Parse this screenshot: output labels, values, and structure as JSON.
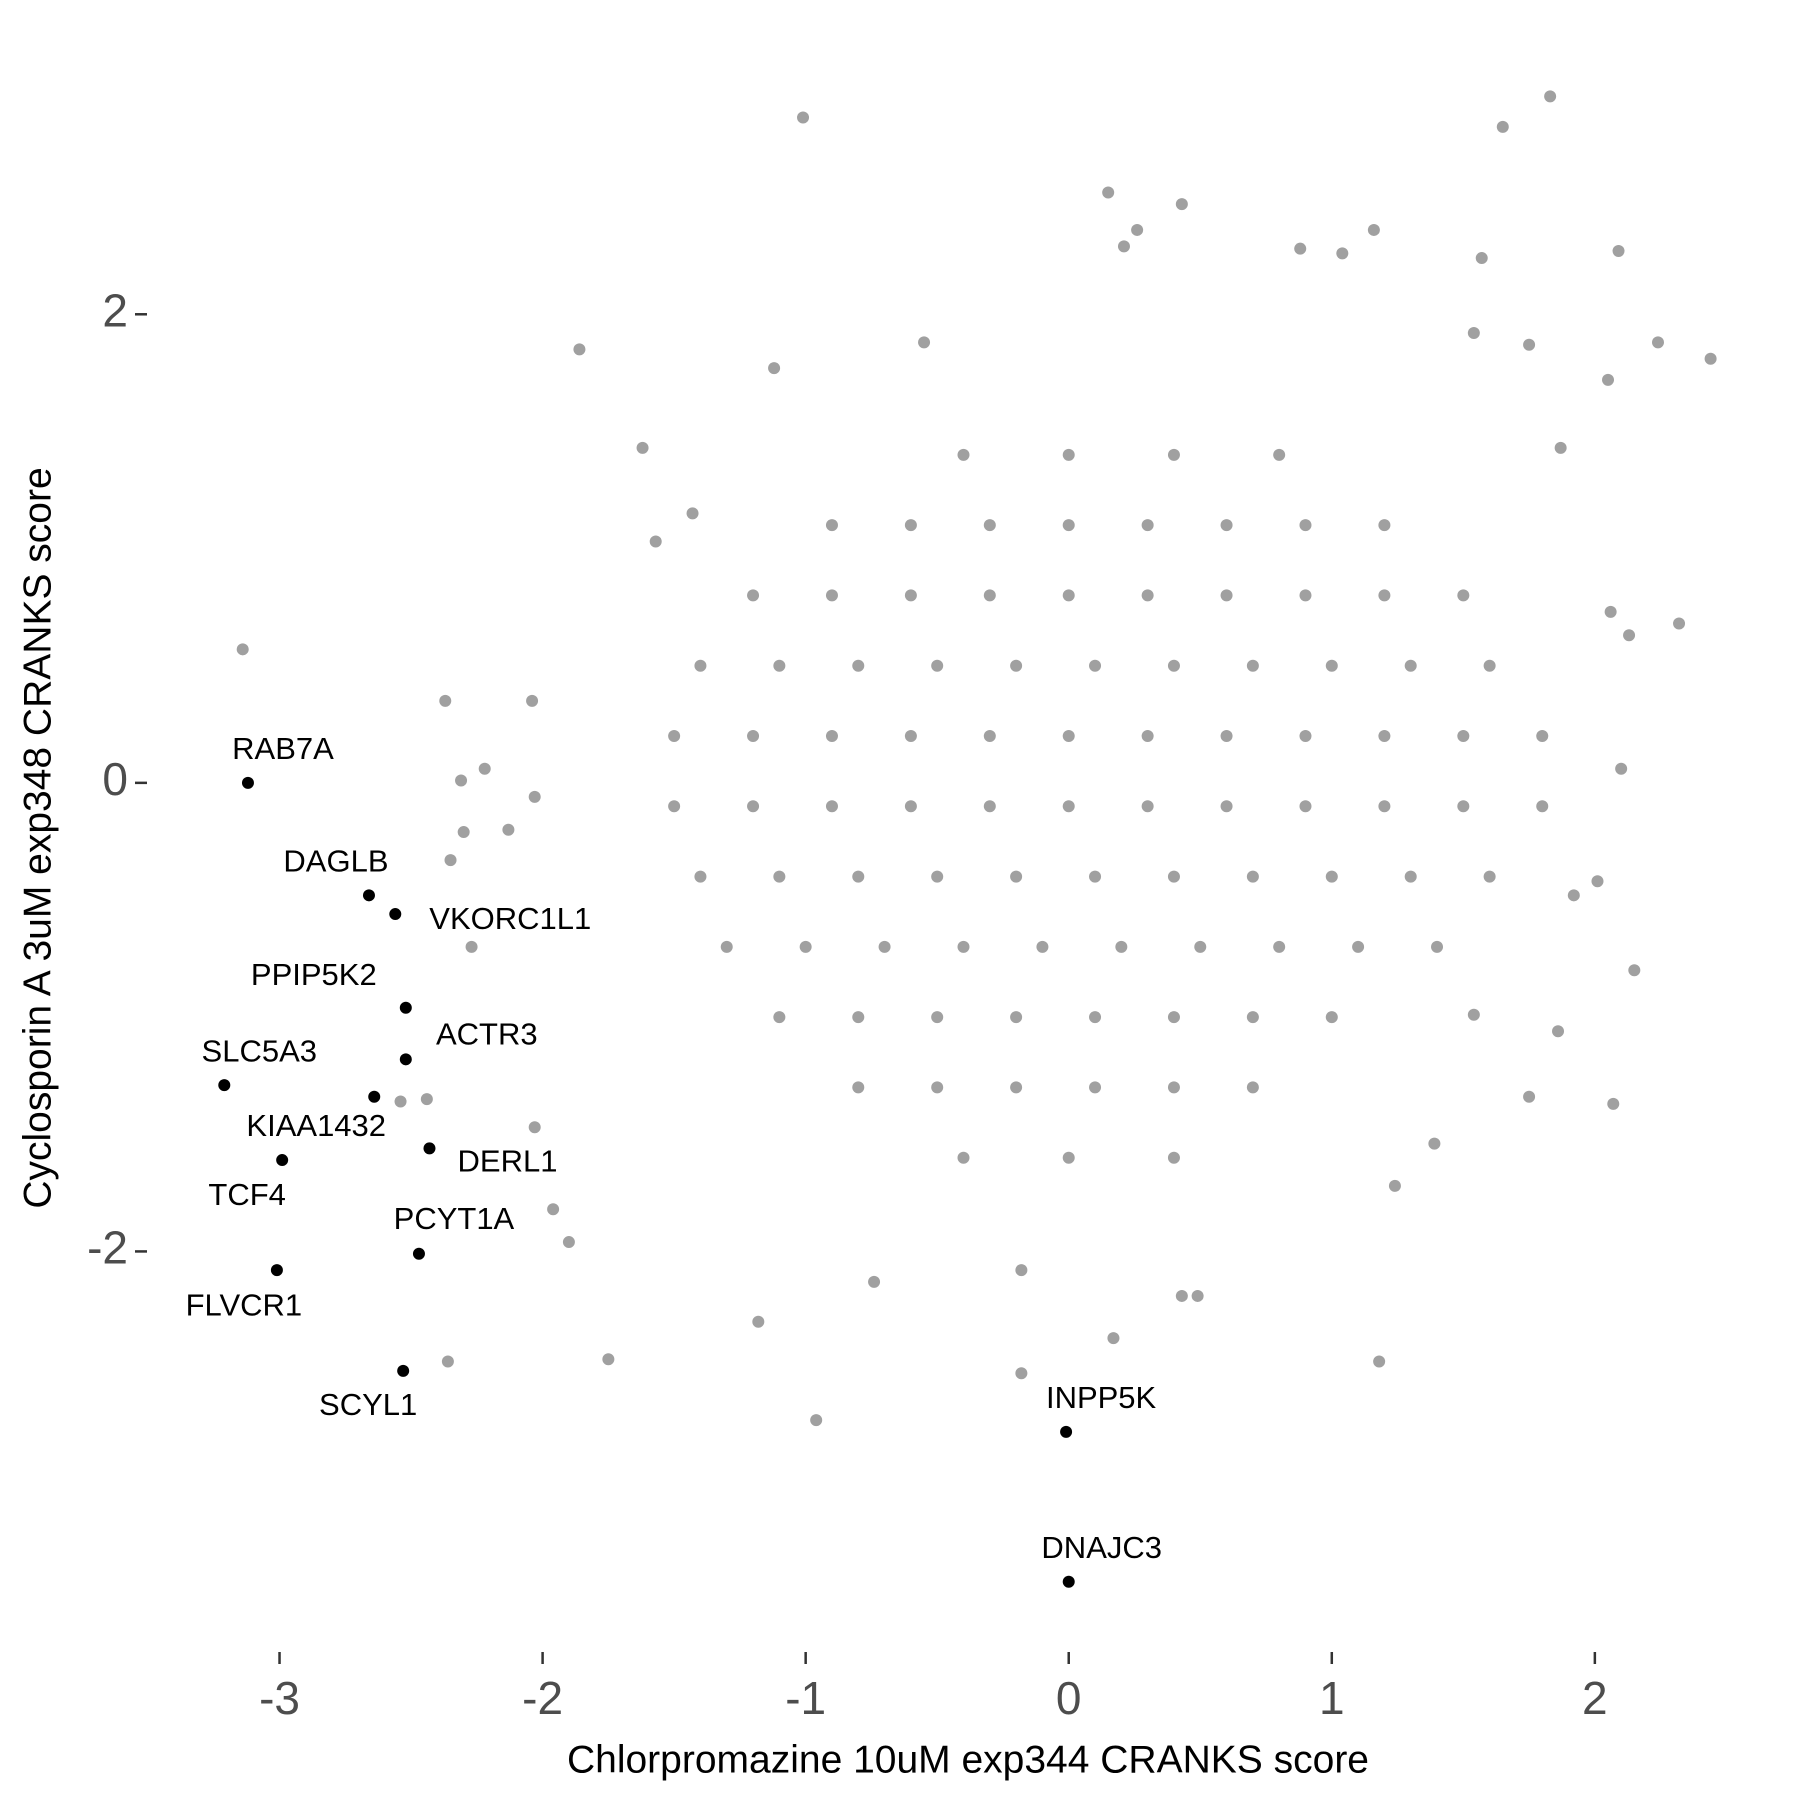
{
  "chart_data": {
    "type": "scatter",
    "x_label": "Chlorpromazine 10uM exp344 CRANKS score",
    "y_label": "Cyclosporin A 3uM exp348 CRANKS score",
    "xlim": [
      -3.5,
      2.7
    ],
    "ylim": [
      -3.65,
      3.0
    ],
    "xticks": [
      -3,
      -2,
      -1,
      0,
      1,
      2
    ],
    "yticks": [
      -2,
      0,
      2
    ],
    "grid": false,
    "series": [
      {
        "color": "#a0a0a0",
        "x": [
          -1.01,
          1.83,
          1.65,
          0.15,
          0.43,
          -3.14,
          -1.86,
          -1.12,
          2.24,
          2.44,
          2.09,
          2.32,
          2.15,
          2.07,
          1.24,
          1.18,
          0.43,
          0.17,
          -0.18,
          -0.96,
          -1.18,
          -1.75,
          -2.36,
          -2.37,
          -2.04,
          -2.31,
          -2.22,
          -2.03,
          -2.13,
          -2.35,
          -2.3,
          -2.27,
          -1.96,
          -1.9,
          -2.03,
          -2.44,
          -2.54,
          -0.74,
          -0.18,
          0.49,
          1.39,
          2.06,
          2.13,
          2.1,
          2.01,
          1.92,
          1.86,
          1.75,
          1.54,
          2.05,
          1.16,
          1.04,
          0.88,
          1.54,
          1.75,
          1.87,
          1.57,
          0.21,
          0.26,
          -0.55,
          -1.62,
          -1.43,
          -1.57,
          -0.4,
          0.0,
          0.4,
          0.8,
          -0.9,
          -0.6,
          -0.3,
          0,
          0.3,
          0.6,
          0.9,
          1.2,
          -1.2,
          -0.9,
          -0.6,
          -0.3,
          0,
          0.3,
          0.6,
          0.9,
          1.2,
          1.5,
          -1.4,
          -1.1,
          -0.8,
          -0.5,
          -0.2,
          0.1,
          0.4,
          0.7,
          1.0,
          1.3,
          1.6,
          -1.5,
          -1.2,
          -0.9,
          -0.6,
          -0.3,
          0,
          0.3,
          0.6,
          0.9,
          1.2,
          1.5,
          1.8,
          -1.5,
          -1.2,
          -0.9,
          -0.6,
          -0.3,
          0,
          0.3,
          0.6,
          0.9,
          1.2,
          1.5,
          1.8,
          -1.4,
          -1.1,
          -0.8,
          -0.5,
          -0.2,
          0.1,
          0.4,
          0.7,
          1.0,
          1.3,
          1.6,
          -1.3,
          -1.0,
          -0.7,
          -0.4,
          -0.1,
          0.2,
          0.5,
          0.8,
          1.1,
          1.4,
          -1.1,
          -0.8,
          -0.5,
          -0.2,
          0.1,
          0.4,
          0.7,
          1.0,
          -0.8,
          -0.5,
          -0.2,
          0.1,
          0.4,
          0.7,
          -0.4,
          0,
          0.4
        ],
        "y": [
          2.84,
          2.93,
          2.8,
          2.52,
          2.47,
          0.57,
          1.85,
          1.77,
          1.88,
          1.81,
          2.27,
          0.68,
          -0.8,
          -1.37,
          -1.72,
          -2.47,
          -2.19,
          -2.37,
          -2.52,
          -2.72,
          -2.3,
          -2.46,
          -2.47,
          0.35,
          0.35,
          0.01,
          0.06,
          -0.06,
          -0.2,
          -0.33,
          -0.21,
          -0.7,
          -1.82,
          -1.96,
          -1.47,
          -1.35,
          -1.36,
          -2.13,
          -2.08,
          -2.19,
          -1.54,
          0.73,
          0.63,
          0.06,
          -0.42,
          -0.48,
          -1.06,
          -1.34,
          -0.99,
          1.72,
          2.36,
          2.26,
          2.28,
          1.92,
          1.87,
          1.43,
          2.24,
          2.29,
          2.36,
          1.88,
          1.43,
          1.15,
          1.03,
          1.4,
          1.4,
          1.4,
          1.4,
          1.1,
          1.1,
          1.1,
          1.1,
          1.1,
          1.1,
          1.1,
          1.1,
          0.8,
          0.8,
          0.8,
          0.8,
          0.8,
          0.8,
          0.8,
          0.8,
          0.8,
          0.8,
          0.5,
          0.5,
          0.5,
          0.5,
          0.5,
          0.5,
          0.5,
          0.5,
          0.5,
          0.5,
          0.5,
          0.2,
          0.2,
          0.2,
          0.2,
          0.2,
          0.2,
          0.2,
          0.2,
          0.2,
          0.2,
          0.2,
          0.2,
          -0.1,
          -0.1,
          -0.1,
          -0.1,
          -0.1,
          -0.1,
          -0.1,
          -0.1,
          -0.1,
          -0.1,
          -0.1,
          -0.1,
          -0.4,
          -0.4,
          -0.4,
          -0.4,
          -0.4,
          -0.4,
          -0.4,
          -0.4,
          -0.4,
          -0.4,
          -0.4,
          -0.7,
          -0.7,
          -0.7,
          -0.7,
          -0.7,
          -0.7,
          -0.7,
          -0.7,
          -0.7,
          -0.7,
          -1.0,
          -1.0,
          -1.0,
          -1.0,
          -1.0,
          -1.0,
          -1.0,
          -1.0,
          -1.3,
          -1.3,
          -1.3,
          -1.3,
          -1.3,
          -1.3,
          -1.6,
          -1.6,
          -1.6
        ]
      },
      {
        "color": "#000000",
        "labels": [
          "RAB7A",
          "DAGLB",
          "VKORC1L1",
          "PPIP5K2",
          "ACTR3",
          "SLC5A3",
          "KIAA1432",
          "DERL1",
          "TCF4",
          "PCYT1A",
          "FLVCR1",
          "SCYL1",
          "INPP5K",
          "DNAJC3"
        ],
        "x": [
          -3.12,
          -2.66,
          -2.56,
          -2.52,
          -2.52,
          -3.21,
          -2.64,
          -2.43,
          -2.99,
          -2.47,
          -3.01,
          -2.53,
          -0.01,
          0.0
        ],
        "y": [
          0.0,
          -0.48,
          -0.56,
          -0.96,
          -1.18,
          -1.29,
          -1.34,
          -1.56,
          -1.61,
          -2.01,
          -2.08,
          -2.51,
          -2.77,
          -3.41
        ]
      }
    ]
  }
}
